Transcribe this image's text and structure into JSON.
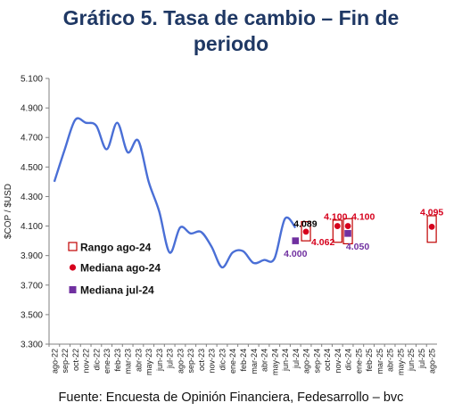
{
  "header": {
    "title_line1": "Gráfico 5. Tasa de cambio – Fin de",
    "title_line2": "periodo"
  },
  "footer": {
    "source": "Fuente: Encuesta de Opinión Financiera, Fedesarrollo – bvc"
  },
  "colors": {
    "line": "#4a6fd6",
    "median_ago": "#d6001c",
    "median_jul": "#7030a0",
    "range_box": "#c00000",
    "axis": "#808080",
    "title": "#1f3864"
  },
  "chart_data": {
    "type": "line",
    "ylabel": "$COP / $USD",
    "ylim": [
      3300,
      5100
    ],
    "yticks": [
      "3.300",
      "3.500",
      "3.700",
      "3.900",
      "4.100",
      "4.300",
      "4.500",
      "4.700",
      "4.900",
      "5.100"
    ],
    "ytick_values": [
      3300,
      3500,
      3700,
      3900,
      4100,
      4300,
      4500,
      4700,
      4900,
      5100
    ],
    "categories": [
      "ago-22",
      "sep-22",
      "oct-22",
      "nov-22",
      "dic-22",
      "ene-23",
      "feb-23",
      "mar-23",
      "abr-23",
      "may-23",
      "jun-23",
      "jul-23",
      "ago-23",
      "sep-23",
      "oct-23",
      "nov-23",
      "dic-23",
      "ene-24",
      "feb-24",
      "mar-24",
      "abr-24",
      "may-24",
      "jun-24",
      "jul-24",
      "ago-24",
      "sep-24",
      "oct-24",
      "nov-24",
      "dic-24",
      "ene-25",
      "feb-25",
      "mar-25",
      "abr-25",
      "may-25",
      "jun-25",
      "jul-25",
      "ago-25"
    ],
    "series": [
      {
        "kind": "line",
        "x": [
          "ago-22",
          "sep-22",
          "oct-22",
          "nov-22",
          "dic-22",
          "ene-23",
          "feb-23",
          "mar-23",
          "abr-23",
          "may-23",
          "jun-23",
          "jul-23",
          "ago-23",
          "sep-23",
          "oct-23",
          "nov-23",
          "dic-23",
          "ene-24",
          "feb-24",
          "mar-24",
          "abr-24",
          "may-24",
          "jun-24",
          "jul-24"
        ],
        "values": [
          4400,
          4620,
          4820,
          4800,
          4780,
          4620,
          4800,
          4600,
          4680,
          4400,
          4200,
          3920,
          4090,
          4050,
          4060,
          3960,
          3820,
          3920,
          3930,
          3850,
          3870,
          3880,
          4150,
          4089
        ]
      },
      {
        "name": "Rango ago-24",
        "kind": "range",
        "ranges": [
          {
            "x": "ago-24",
            "low": 4000,
            "high": 4130
          },
          {
            "x": "nov-24",
            "low": 3990,
            "high": 4140
          },
          {
            "x": "dic-24",
            "low": 3980,
            "high": 4150
          },
          {
            "x": "ago-25",
            "low": 3990,
            "high": 4170
          }
        ]
      },
      {
        "name": "Mediana ago-24",
        "kind": "marker",
        "points": [
          {
            "x": "ago-24",
            "y": 4062,
            "label": "4.062"
          },
          {
            "x": "nov-24",
            "y": 4100,
            "label": "4.100"
          },
          {
            "x": "dic-24",
            "y": 4100,
            "label": "4.100"
          },
          {
            "x": "ago-25",
            "y": 4095,
            "label": "4.095"
          }
        ]
      },
      {
        "name": "Mediana jul-24",
        "kind": "marker",
        "points": [
          {
            "x": "jul-24",
            "y": 4000,
            "label": "4.000"
          },
          {
            "x": "dic-24",
            "y": 4050,
            "label": "4.050"
          }
        ]
      }
    ],
    "annotations": [
      {
        "x": "jul-24",
        "y": 4089,
        "label": "4.089"
      }
    ],
    "legend_position": "left",
    "grid": false
  }
}
